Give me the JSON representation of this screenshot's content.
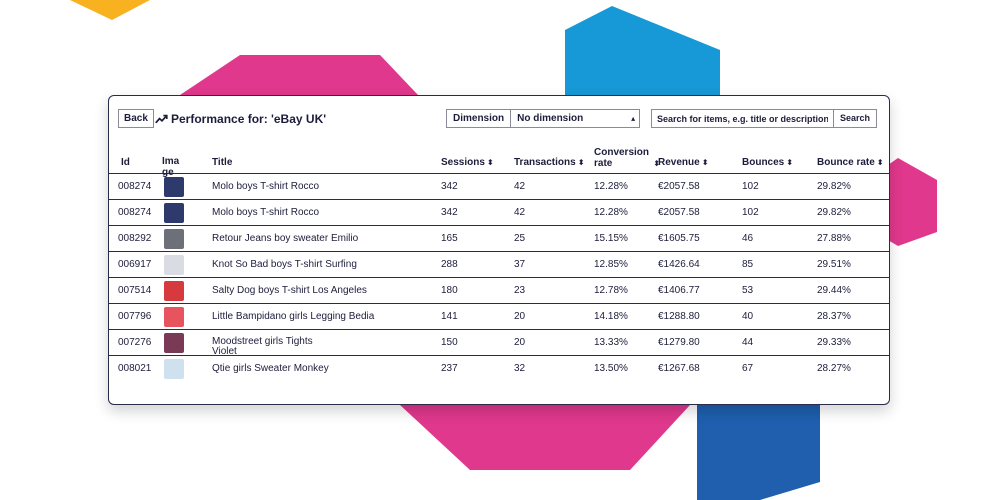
{
  "toolbar": {
    "back_label": "Back",
    "title": "Performance for: 'eBay UK'",
    "dimension_label": "Dimension",
    "dimension_value": "No dimension",
    "search_placeholder": "Search for items, e.g. title or description",
    "search_button": "Search"
  },
  "table": {
    "headers": {
      "id": "Id",
      "image": "Image",
      "title": "Title",
      "sessions": "Sessions",
      "transactions": "Transactions",
      "conversion_rate": "Conversion rate",
      "revenue": "Revenue",
      "bounces": "Bounces",
      "bounce_rate": "Bounce rate"
    },
    "sort_glyph": "⬍",
    "rows": [
      {
        "id": "008274",
        "thumb_color": "#2e3a6b",
        "title": "Molo boys T-shirt Rocco",
        "sessions": "342",
        "transactions": "42",
        "conversion_rate": "12.28%",
        "revenue": "€2057.58",
        "bounces": "102",
        "bounce_rate": "29.82%"
      },
      {
        "id": "008274",
        "thumb_color": "#2e3a6b",
        "title": "Molo boys T-shirt Rocco",
        "sessions": "342",
        "transactions": "42",
        "conversion_rate": "12.28%",
        "revenue": "€2057.58",
        "bounces": "102",
        "bounce_rate": "29.82%"
      },
      {
        "id": "008292",
        "thumb_color": "#6d7078",
        "title": "Retour Jeans boy sweater Emilio",
        "sessions": "165",
        "transactions": "25",
        "conversion_rate": "15.15%",
        "revenue": "€1605.75",
        "bounces": "46",
        "bounce_rate": "27.88%"
      },
      {
        "id": "006917",
        "thumb_color": "#d9dde3",
        "title": "Knot So Bad boys T-shirt Surfing",
        "sessions": "288",
        "transactions": "37",
        "conversion_rate": "12.85%",
        "revenue": "€1426.64",
        "bounces": "85",
        "bounce_rate": "29.51%"
      },
      {
        "id": "007514",
        "thumb_color": "#d63a3f",
        "title": "Salty Dog boys T-shirt Los Angeles",
        "sessions": "180",
        "transactions": "23",
        "conversion_rate": "12.78%",
        "revenue": "€1406.77",
        "bounces": "53",
        "bounce_rate": "29.44%"
      },
      {
        "id": "007796",
        "thumb_color": "#e8545d",
        "title": "Little Bampidano girls Legging Bedia",
        "sessions": "141",
        "transactions": "20",
        "conversion_rate": "14.18%",
        "revenue": "€1288.80",
        "bounces": "40",
        "bounce_rate": "28.37%"
      },
      {
        "id": "007276",
        "thumb_color": "#7a3a55",
        "title": "Moodstreet girls Tights",
        "title_line2": "Violet",
        "sessions": "150",
        "transactions": "20",
        "conversion_rate": "13.33%",
        "revenue": "€1279.80",
        "bounces": "44",
        "bounce_rate": "29.33%"
      },
      {
        "id": "008021",
        "thumb_color": "#cfe1ef",
        "title": "Qtie girls Sweater Monkey",
        "sessions": "237",
        "transactions": "32",
        "conversion_rate": "13.50%",
        "revenue": "€1267.68",
        "bounces": "67",
        "bounce_rate": "28.27%"
      }
    ]
  },
  "colors": {
    "pink": "#e0388c",
    "blue": "#1699d6",
    "dark_blue": "#1f5fae",
    "yellow": "#f8b21f",
    "border": "#2a2a4a"
  }
}
